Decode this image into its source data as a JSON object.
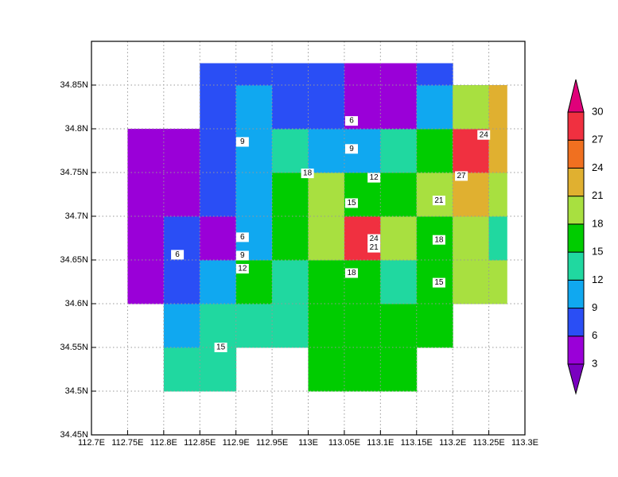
{
  "chart_data": {
    "type": "contour",
    "lon_edges": [
      112.75,
      112.8,
      112.85,
      112.9,
      112.95,
      113.0,
      113.05,
      113.1,
      113.15,
      113.2,
      113.25,
      113.275
    ],
    "lat_edges": [
      34.5,
      34.55,
      34.6,
      34.65,
      34.7,
      34.75,
      34.8,
      34.85,
      34.875
    ],
    "values": [
      [
        null,
        13,
        14,
        null,
        null,
        17,
        17,
        16,
        null,
        null,
        null
      ],
      [
        null,
        10,
        13,
        14,
        14,
        17,
        16,
        16,
        16,
        null,
        null
      ],
      [
        5,
        8,
        11,
        15,
        14,
        16,
        17,
        13,
        16,
        19,
        19
      ],
      [
        4,
        6,
        5,
        9,
        16,
        18,
        27,
        18,
        17,
        18,
        14
      ],
      [
        4,
        5,
        8,
        11,
        17,
        18,
        17,
        16,
        18,
        21,
        20
      ],
      [
        4,
        5,
        8,
        10,
        12,
        11,
        10,
        14,
        17,
        27,
        23
      ],
      [
        null,
        null,
        7,
        9,
        8,
        8,
        5,
        5,
        9,
        19,
        22
      ],
      [
        null,
        null,
        7,
        7,
        7,
        7,
        4,
        4,
        6,
        null,
        null
      ]
    ],
    "levels": [
      3,
      6,
      9,
      12,
      15,
      18,
      21,
      24,
      27,
      30
    ],
    "colors": [
      "#7a00c0",
      "#9a00d8",
      "#2a4ef5",
      "#10a8f0",
      "#20d8a0",
      "#00cc00",
      "#a8e040",
      "#e0b030",
      "#f07020",
      "#f03040",
      "#e0007a"
    ],
    "xlim": [
      112.7,
      113.3
    ],
    "ylim": [
      34.45,
      34.9
    ],
    "xticks": [
      {
        "value": 112.7,
        "label": "112.7E"
      },
      {
        "value": 112.75,
        "label": "112.75E"
      },
      {
        "value": 112.8,
        "label": "112.8E"
      },
      {
        "value": 112.85,
        "label": "112.85E"
      },
      {
        "value": 112.9,
        "label": "112.9E"
      },
      {
        "value": 112.95,
        "label": "112.95E"
      },
      {
        "value": 113.0,
        "label": "113E"
      },
      {
        "value": 113.05,
        "label": "113.05E"
      },
      {
        "value": 113.1,
        "label": "113.1E"
      },
      {
        "value": 113.15,
        "label": "113.15E"
      },
      {
        "value": 113.2,
        "label": "113.2E"
      },
      {
        "value": 113.25,
        "label": "113.25E"
      },
      {
        "value": 113.3,
        "label": "113.3E"
      }
    ],
    "yticks": [
      {
        "value": 34.45,
        "label": "34.45N"
      },
      {
        "value": 34.5,
        "label": "34.5N"
      },
      {
        "value": 34.55,
        "label": "34.55N"
      },
      {
        "value": 34.6,
        "label": "34.6N"
      },
      {
        "value": 34.65,
        "label": "34.65N"
      },
      {
        "value": 34.7,
        "label": "34.7N"
      },
      {
        "value": 34.75,
        "label": "34.75N"
      },
      {
        "value": 34.8,
        "label": "34.8N"
      },
      {
        "value": 34.85,
        "label": "34.85N"
      }
    ],
    "grid": true,
    "contour_labels": [
      {
        "value": 6,
        "lon": 113.06,
        "lat": 34.809
      },
      {
        "value": 9,
        "lon": 113.06,
        "lat": 34.777
      },
      {
        "value": 9,
        "lon": 112.909,
        "lat": 34.785
      },
      {
        "value": 12,
        "lon": 113.091,
        "lat": 34.744
      },
      {
        "value": 18,
        "lon": 112.999,
        "lat": 34.749
      },
      {
        "value": 15,
        "lon": 113.06,
        "lat": 34.715
      },
      {
        "value": 24,
        "lon": 113.243,
        "lat": 34.793
      },
      {
        "value": 27,
        "lon": 113.212,
        "lat": 34.746
      },
      {
        "value": 21,
        "lon": 113.181,
        "lat": 34.718
      },
      {
        "value": 24,
        "lon": 113.091,
        "lat": 34.674
      },
      {
        "value": 21,
        "lon": 113.091,
        "lat": 34.664
      },
      {
        "value": 18,
        "lon": 113.181,
        "lat": 34.673
      },
      {
        "value": 6,
        "lon": 112.909,
        "lat": 34.676
      },
      {
        "value": 9,
        "lon": 112.909,
        "lat": 34.655
      },
      {
        "value": 12,
        "lon": 112.909,
        "lat": 34.64
      },
      {
        "value": 6,
        "lon": 112.819,
        "lat": 34.656
      },
      {
        "value": 18,
        "lon": 113.06,
        "lat": 34.635
      },
      {
        "value": 15,
        "lon": 113.181,
        "lat": 34.624
      },
      {
        "value": 15,
        "lon": 112.879,
        "lat": 34.55
      }
    ]
  }
}
